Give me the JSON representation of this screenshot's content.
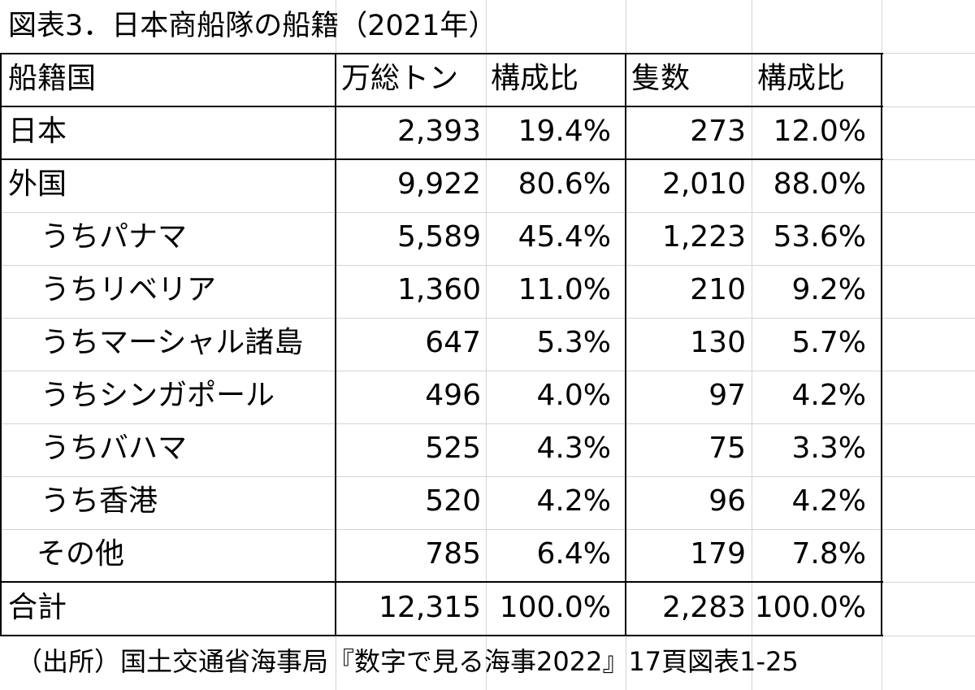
{
  "title": "図表3．日本商船隊の船籍（2021年）",
  "headers": {
    "country": "船籍国",
    "tonnage": "万総トン",
    "tonnage_share": "構成比",
    "ships": "隻数",
    "ships_share": "構成比"
  },
  "rows": [
    {
      "country": "日本",
      "tonnage": "2,393",
      "tonnage_share": "19.4%",
      "ships": "273",
      "ships_share": "12.0%"
    },
    {
      "country": "外国",
      "tonnage": "9,922",
      "tonnage_share": "80.6%",
      "ships": "2,010",
      "ships_share": "88.0%"
    },
    {
      "country": "うちパナマ",
      "tonnage": "5,589",
      "tonnage_share": "45.4%",
      "ships": "1,223",
      "ships_share": "53.6%"
    },
    {
      "country": "うちリベリア",
      "tonnage": "1,360",
      "tonnage_share": "11.0%",
      "ships": "210",
      "ships_share": "9.2%"
    },
    {
      "country": "うちマーシャル諸島",
      "tonnage": "647",
      "tonnage_share": "5.3%",
      "ships": "130",
      "ships_share": "5.7%"
    },
    {
      "country": "うちシンガポール",
      "tonnage": "496",
      "tonnage_share": "4.0%",
      "ships": "97",
      "ships_share": "4.2%"
    },
    {
      "country": "うちバハマ",
      "tonnage": "525",
      "tonnage_share": "4.3%",
      "ships": "75",
      "ships_share": "3.3%"
    },
    {
      "country": "うち香港",
      "tonnage": "520",
      "tonnage_share": "4.2%",
      "ships": "96",
      "ships_share": "4.2%"
    },
    {
      "country": "その他",
      "tonnage": "785",
      "tonnage_share": "6.4%",
      "ships": "179",
      "ships_share": "7.8%"
    },
    {
      "country": "合計",
      "tonnage": "12,315",
      "tonnage_share": "100.0%",
      "ships": "2,283",
      "ships_share": "100.0%"
    }
  ],
  "source": "（出所）国土交通省海事局『数字で見る海事2022』17頁図表1-25"
}
